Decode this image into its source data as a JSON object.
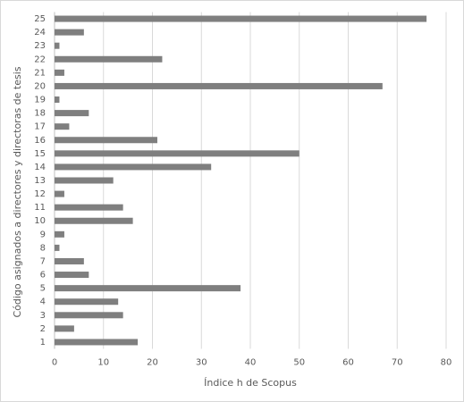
{
  "chart_data": {
    "type": "bar",
    "orientation": "horizontal",
    "xlabel": "Índice h de Scopus",
    "ylabel": "Código asignados a directores y directoras de tesis",
    "categories": [
      "1",
      "2",
      "3",
      "4",
      "5",
      "6",
      "7",
      "8",
      "9",
      "10",
      "11",
      "12",
      "13",
      "14",
      "15",
      "16",
      "17",
      "18",
      "19",
      "20",
      "21",
      "22",
      "23",
      "24",
      "25"
    ],
    "values": [
      17,
      4,
      14,
      13,
      38,
      7,
      6,
      1,
      2,
      16,
      14,
      2,
      12,
      32,
      50,
      21,
      3,
      7,
      1,
      67,
      2,
      22,
      1,
      6,
      76
    ],
    "color": "#7f7f7f",
    "xlim": [
      0,
      80
    ],
    "xticks": [
      0,
      10,
      20,
      30,
      40,
      50,
      60,
      70,
      80
    ],
    "grid": true
  }
}
